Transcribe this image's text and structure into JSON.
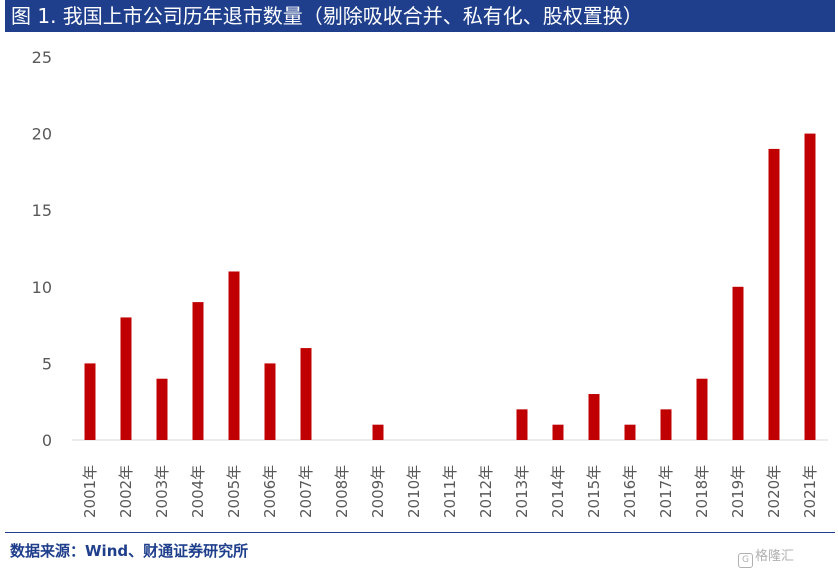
{
  "header": {
    "title": "图 1. 我国上市公司历年退市数量（剔除吸收合并、私有化、股权置换）"
  },
  "footer": {
    "source": "数据来源：Wind、财通证券研究所"
  },
  "watermark": {
    "text": "格隆汇",
    "icon": "G"
  },
  "colors": {
    "title_bg": "#1f3f8c",
    "bar": "#c00000",
    "axis": "#d9d9d9",
    "tick_text": "#595959"
  },
  "chart_data": {
    "type": "bar",
    "title": "",
    "xlabel": "",
    "ylabel": "",
    "categories": [
      "2001年",
      "2002年",
      "2003年",
      "2004年",
      "2005年",
      "2006年",
      "2007年",
      "2008年",
      "2009年",
      "2010年",
      "2011年",
      "2012年",
      "2013年",
      "2014年",
      "2015年",
      "2016年",
      "2017年",
      "2018年",
      "2019年",
      "2020年",
      "2021年"
    ],
    "values": [
      5,
      8,
      4,
      9,
      11,
      5,
      6,
      0,
      1,
      0,
      0,
      0,
      2,
      1,
      3,
      1,
      2,
      4,
      10,
      19,
      20
    ],
    "ylim": [
      0,
      25
    ],
    "yticks": [
      0,
      5,
      10,
      15,
      20,
      25
    ],
    "grid": false,
    "legend": "none"
  }
}
